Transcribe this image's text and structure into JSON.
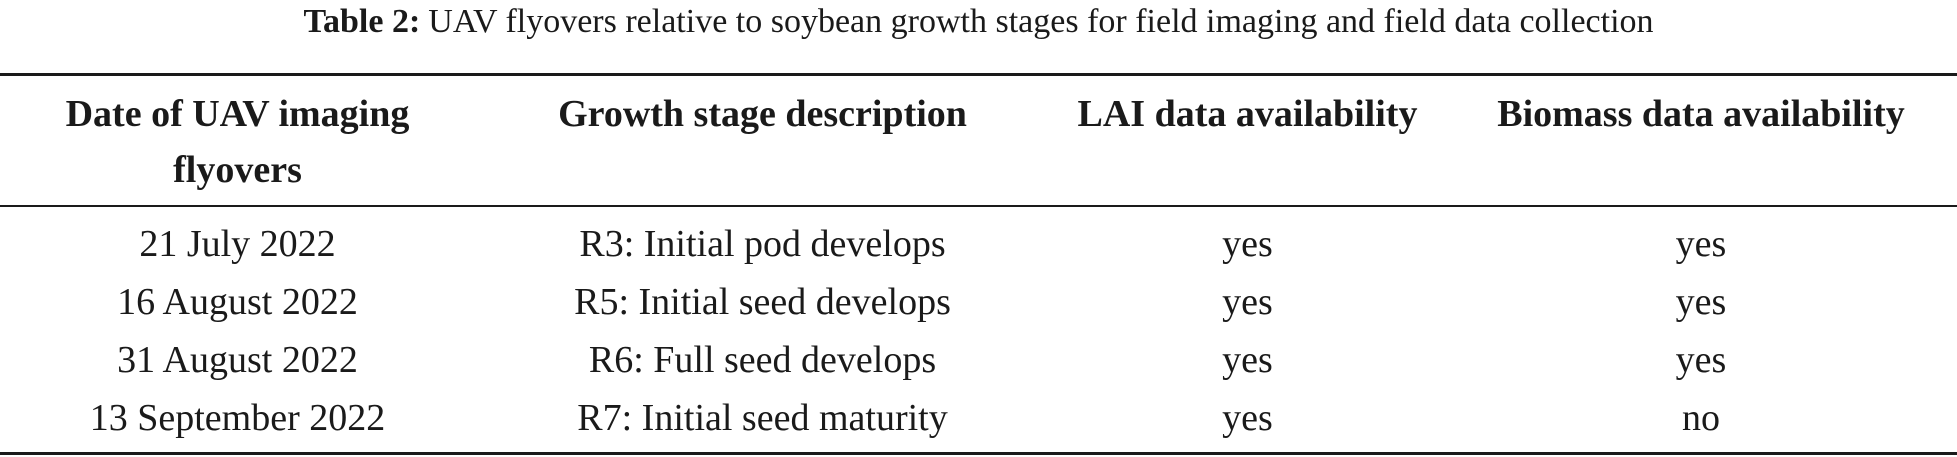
{
  "caption": {
    "label": "Table 2:",
    "text": "UAV flyovers relative to soybean growth stages for field imaging and field data collection"
  },
  "table": {
    "headers": [
      "Date of UAV imaging flyovers",
      "Growth stage description",
      "LAI data availability",
      "Biomass data availability"
    ],
    "rows": [
      [
        "21 July 2022",
        "R3: Initial pod develops",
        "yes",
        "yes"
      ],
      [
        "16 August 2022",
        "R5: Initial seed develops",
        "yes",
        "yes"
      ],
      [
        "31 August 2022",
        "R6: Full seed develops",
        "yes",
        "yes"
      ],
      [
        "13 September 2022",
        "R7: Initial seed maturity",
        "yes",
        "no"
      ]
    ]
  }
}
